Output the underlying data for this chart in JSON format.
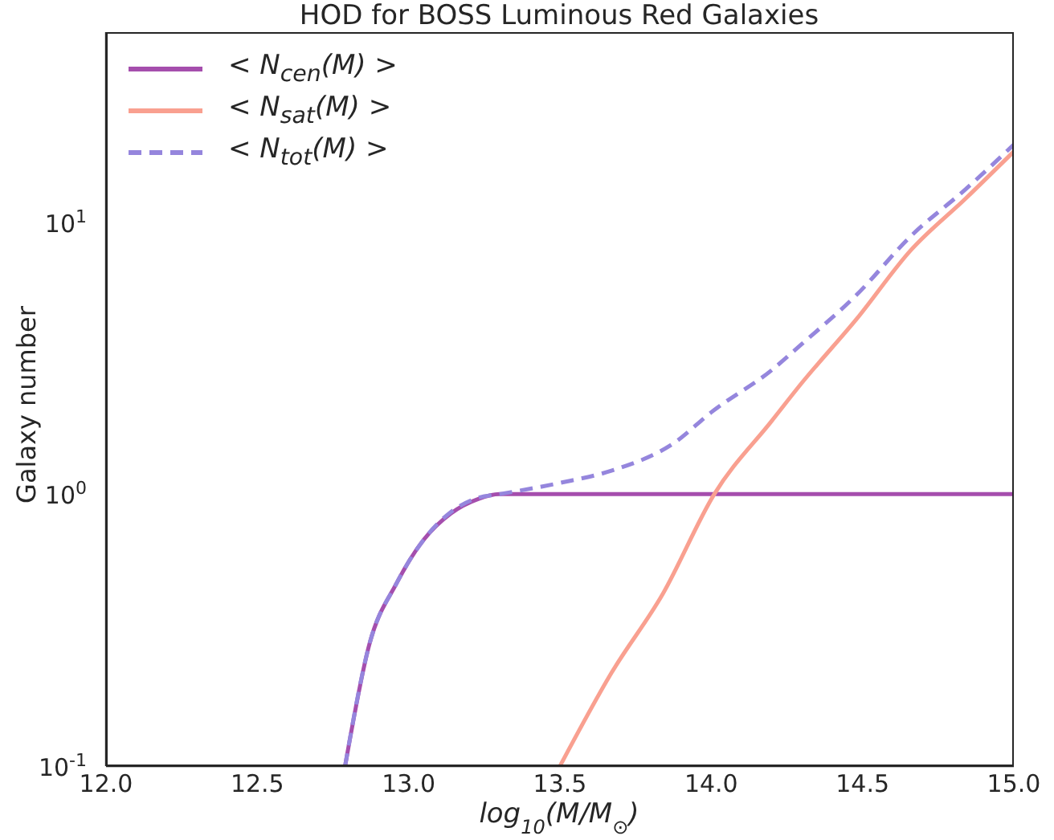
{
  "chart_data": {
    "type": "line",
    "title": "HOD for BOSS Luminous Red Galaxies",
    "xlabel": "log$_{10}$(M/M$_{⊙}$)",
    "ylabel": "Galaxy number",
    "xlim": [
      12.0,
      15.0
    ],
    "xticks": [
      {
        "value": 12,
        "label": "12.0"
      },
      {
        "value": 12.5,
        "label": "12.5"
      },
      {
        "value": 13,
        "label": "13.0"
      },
      {
        "value": 13.5,
        "label": "13.5"
      },
      {
        "value": 14,
        "label": "14.0"
      },
      {
        "value": 14.5,
        "label": "14.5"
      },
      {
        "value": 15,
        "label": "15.0"
      }
    ],
    "ylim": [
      0.1,
      50
    ],
    "yticks": [
      {
        "value": 0.1,
        "label": "10$^{-1}$"
      },
      {
        "value": 1,
        "label": "10$^{0}$"
      },
      {
        "value": 10,
        "label": "10$^{1}$"
      }
    ],
    "log": "y",
    "legend": "top left",
    "marker": "none",
    "series": [
      {
        "name": "< N$_{cen}$(M) >",
        "color": "#a54ead",
        "line_style": "solid",
        "x": [
          12.79,
          12.87,
          12.96,
          13.05,
          13.14,
          13.23,
          13.3,
          13.5,
          14.0,
          14.5,
          15.0
        ],
        "values": [
          0.1,
          0.28,
          0.47,
          0.68,
          0.85,
          0.96,
          1.0,
          1.0,
          1.0,
          1.0,
          1.0
        ]
      },
      {
        "name": "< N$_{sat}$(M) >",
        "color": "#f9a090",
        "line_style": "solid",
        "x": [
          13.5,
          13.67,
          13.84,
          14.01,
          14.2,
          14.3,
          14.48,
          14.66,
          14.84,
          15.0
        ],
        "values": [
          0.1,
          0.22,
          0.43,
          1.0,
          1.86,
          2.57,
          4.4,
          7.9,
          12.2,
          18.2
        ]
      },
      {
        "name": "< N$_{tot}$(M) >",
        "color": "#9586dd",
        "line_style": "dashed",
        "x": [
          12.79,
          12.87,
          12.96,
          13.05,
          13.14,
          13.23,
          13.3,
          13.5,
          13.67,
          13.88,
          14.0,
          14.2,
          14.3,
          14.48,
          14.66,
          14.84,
          15.0
        ],
        "values": [
          0.1,
          0.28,
          0.47,
          0.68,
          0.86,
          0.97,
          1.0,
          1.1,
          1.22,
          1.55,
          2.0,
          2.86,
          3.57,
          5.4,
          8.9,
          13.2,
          19.3
        ]
      }
    ]
  }
}
